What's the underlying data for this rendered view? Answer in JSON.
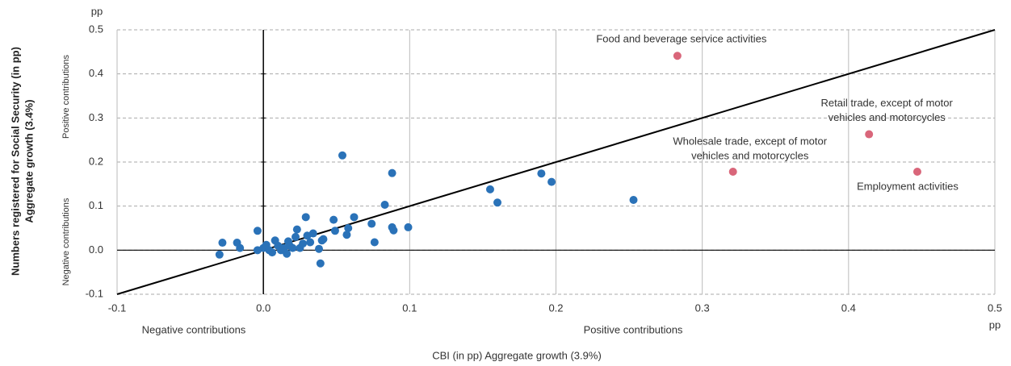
{
  "chart_data": {
    "type": "scatter",
    "y_label": [
      "Numbers registered for Social Security (in pp)",
      "Aggregate growth (3.4%)"
    ],
    "x_label": "CBI (in pp) Aggregate growth (3.9%)",
    "y_unit": "pp",
    "x_unit": "pp",
    "x_annotations": [
      "Negative contributions",
      "Positive contributions"
    ],
    "y_annotations": [
      "Positive contributions",
      "Negative contributions"
    ],
    "xlim": [
      -0.1,
      0.5
    ],
    "ylim": [
      -0.1,
      0.5
    ],
    "xticks": [
      -0.1,
      {
        "value": 0,
        "label": "0.0"
      },
      0.1,
      0.2,
      0.3,
      0.4,
      0.5
    ],
    "yticks": [
      -0.1,
      {
        "value": 0,
        "label": "0.0"
      },
      0.1,
      0.2,
      0.3,
      0.4,
      0.5
    ],
    "grid": true,
    "diagonal": true,
    "series": [
      {
        "color": "#2a72b8",
        "x": [
          -0.03,
          -0.028,
          -0.018,
          -0.016,
          -0.004,
          -0.004,
          0,
          0.002,
          0.004,
          0.006,
          0.008,
          0.01,
          0.012,
          0.014,
          0.016,
          0.017,
          0.018,
          0.02,
          0.022,
          0.023,
          0.025,
          0.027,
          0.029,
          0.03,
          0.032,
          0.034,
          0.038,
          0.039,
          0.04,
          0.041,
          0.048,
          0.049,
          0.054,
          0.057,
          0.058,
          0.062,
          0.074,
          0.076,
          0.083,
          0.088,
          0.088,
          0.089,
          0.099,
          0.155,
          0.16,
          0.19,
          0.197,
          0.253
        ],
        "values": [
          -0.01,
          0.017,
          0.017,
          0.005,
          0.044,
          0.0,
          0.005,
          0.012,
          0.0,
          -0.005,
          0.022,
          0.01,
          0.0,
          0.005,
          -0.008,
          0.02,
          0.01,
          0.005,
          0.03,
          0.047,
          0.005,
          0.015,
          0.075,
          0.033,
          0.018,
          0.038,
          0.003,
          -0.03,
          0.022,
          0.025,
          0.069,
          0.044,
          0.215,
          0.035,
          0.05,
          0.075,
          0.06,
          0.018,
          0.103,
          0.175,
          0.052,
          0.045,
          0.052,
          0.138,
          0.108,
          0.174,
          0.155,
          0.114
        ]
      },
      {
        "color": "#d9667a",
        "x": [
          0.283,
          0.321,
          0.414,
          0.447
        ],
        "values": [
          0.441,
          0.178,
          0.263,
          0.178
        ],
        "point_labels": [
          [
            "Food and beverage service activities"
          ],
          [
            "Wholesale trade, except of motor",
            "vehicles and motorcycles"
          ],
          [
            "Retail trade, except of motor",
            "vehicles and motorcycles"
          ],
          [
            "Employment activities"
          ]
        ]
      }
    ]
  }
}
